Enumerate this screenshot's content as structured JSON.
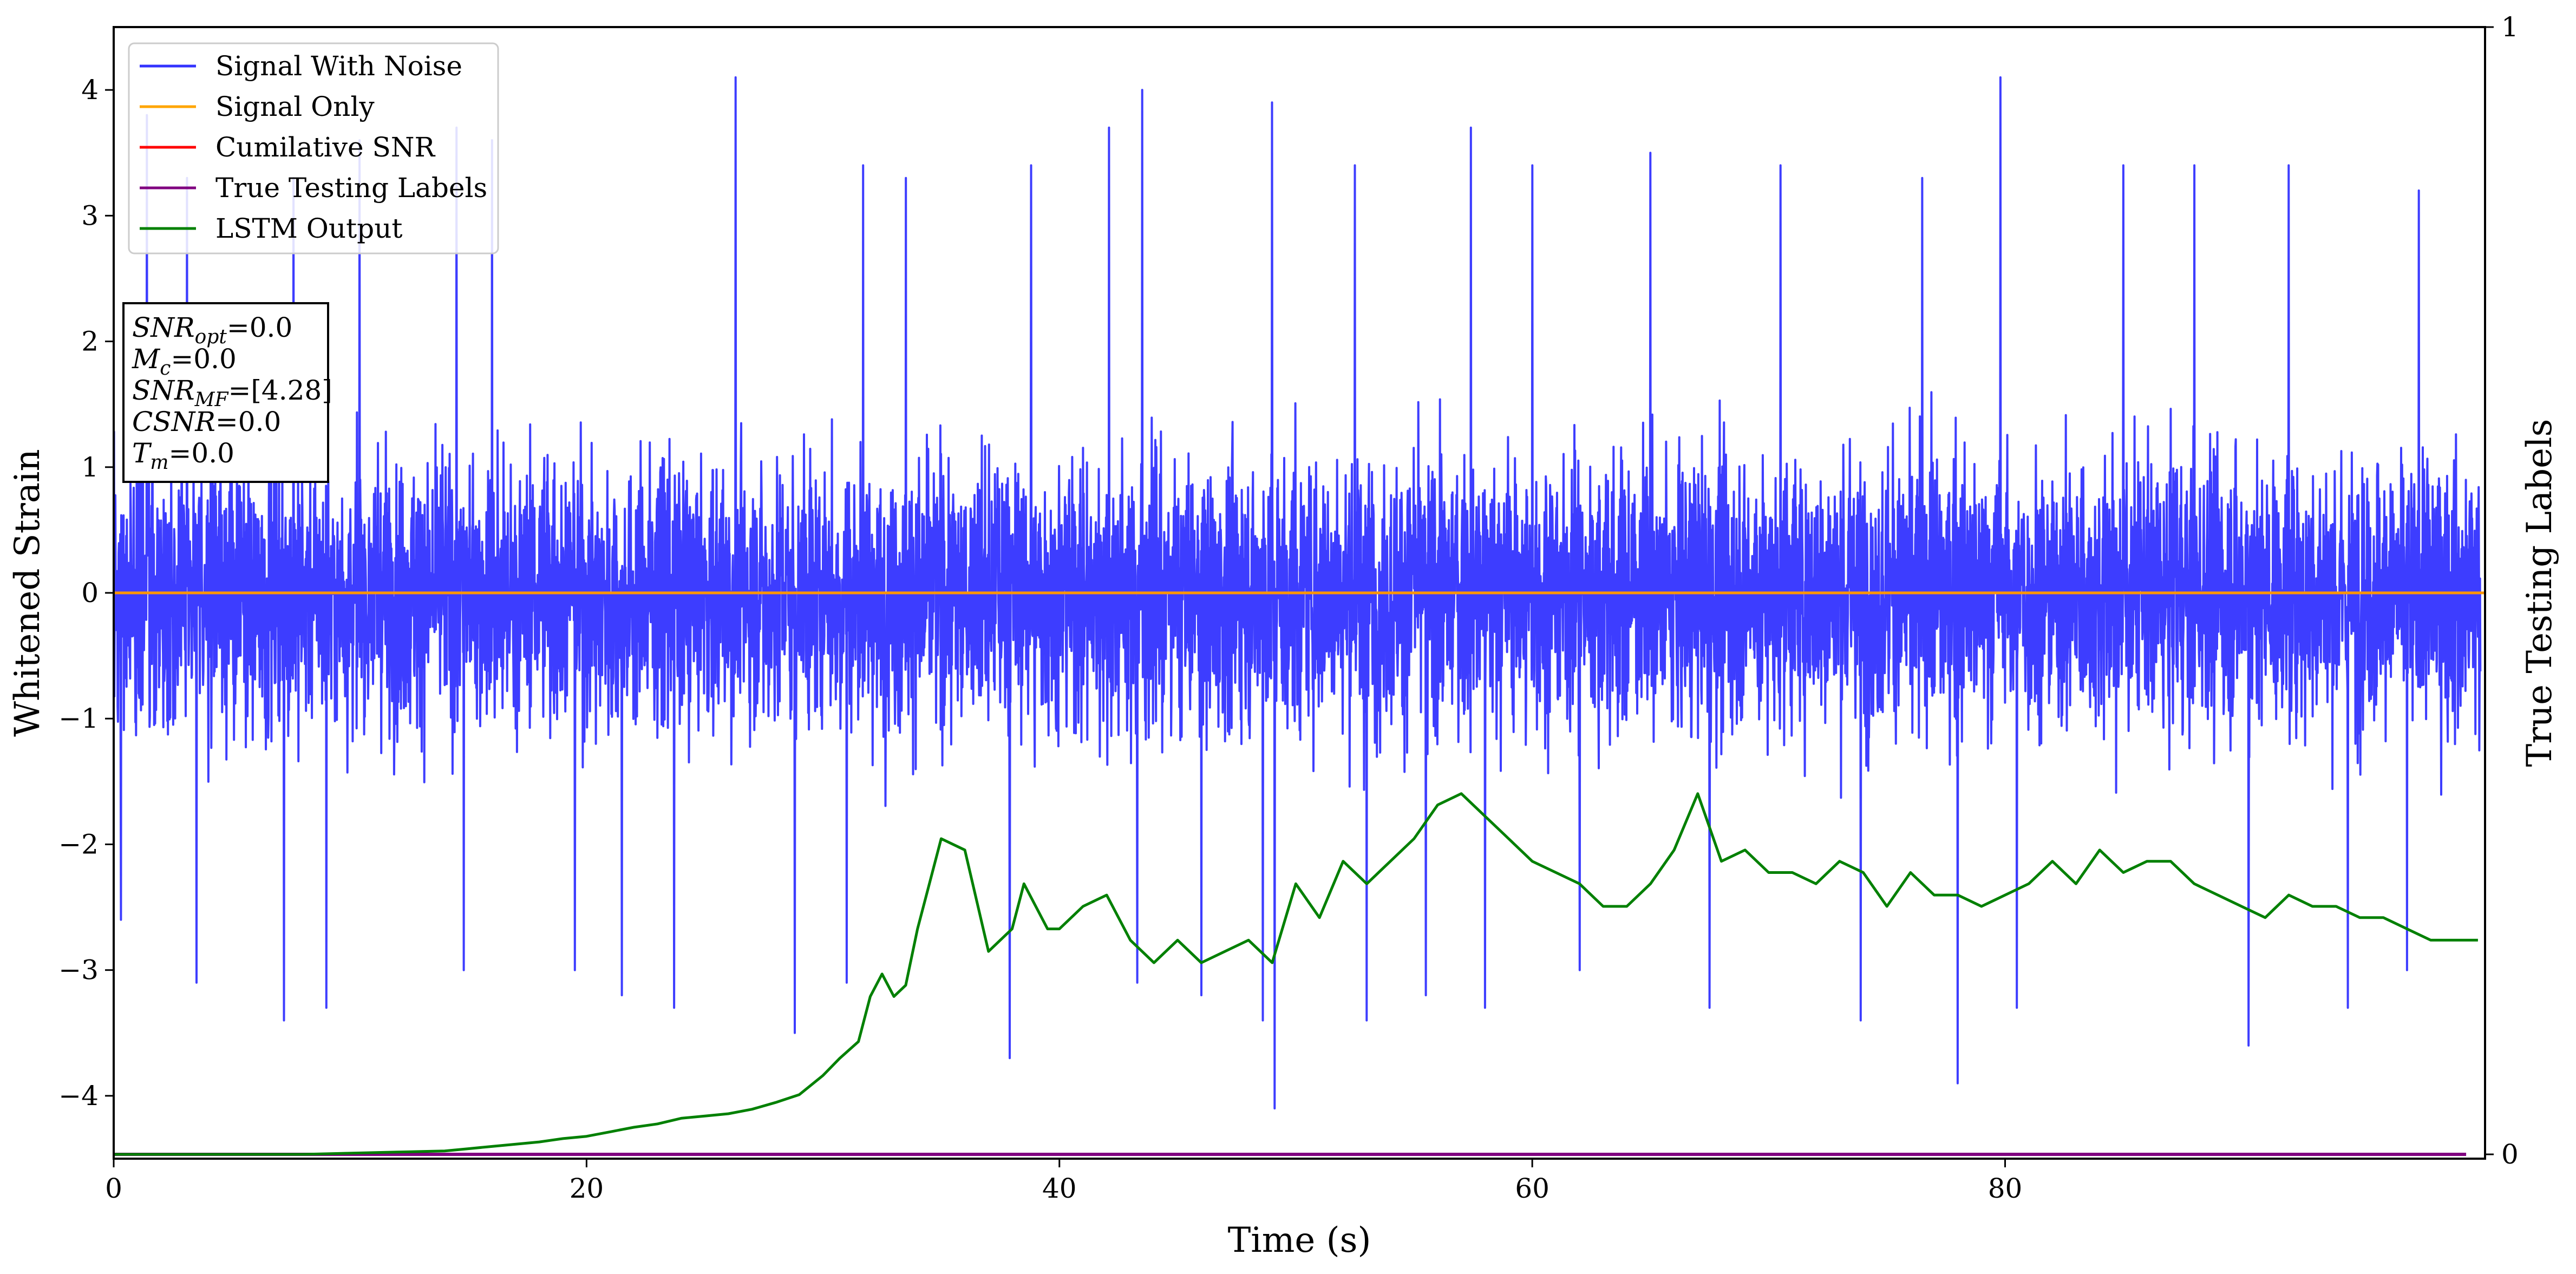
{
  "chart_data": {
    "type": "line",
    "title": "",
    "xlabel": "Time (s)",
    "ylabel": "Whitened Strain",
    "ylabel_right": "True Testing Labels",
    "xlim": [
      0,
      100.3
    ],
    "ylim": [
      -4.5,
      4.5
    ],
    "ylim_right": [
      0,
      1
    ],
    "x_ticks": [
      0,
      20,
      40,
      60,
      80
    ],
    "y_ticks": [
      -4,
      -3,
      -2,
      -1,
      0,
      1,
      2,
      3,
      4
    ],
    "y_ticks_right": [
      0,
      1
    ],
    "legend_position": "upper-left",
    "grid": false,
    "info_box": [
      {
        "sym": "SNR",
        "sub": "opt",
        "rest": "=0.0"
      },
      {
        "sym": "M",
        "sub": "c",
        "rest": "=0.0"
      },
      {
        "sym": "SNR",
        "sub": "MF",
        "rest": "=[4.28]"
      },
      {
        "sym": "CSNR",
        "sub": "",
        "rest": "=0.0"
      },
      {
        "sym": "T",
        "sub": "m",
        "rest": "=0.0"
      }
    ],
    "series": [
      {
        "name": "Signal With Noise",
        "color": "#3333ff",
        "axis": "left",
        "description_note": "dense noise trace sampled throughout 0–100 s",
        "envelope": {
          "typical_low": -1.6,
          "typical_high": 1.6
        },
        "peaks": [
          [
            1.4,
            3.8
          ],
          [
            3.1,
            3.3
          ],
          [
            7.6,
            3.3
          ],
          [
            10.4,
            3.6
          ],
          [
            14.5,
            3.7
          ],
          [
            16.0,
            3.6
          ],
          [
            26.3,
            4.1
          ],
          [
            31.7,
            3.4
          ],
          [
            33.5,
            3.3
          ],
          [
            38.8,
            3.4
          ],
          [
            42.1,
            3.7
          ],
          [
            43.5,
            4.0
          ],
          [
            49.0,
            3.9
          ],
          [
            52.5,
            3.4
          ],
          [
            57.4,
            3.7
          ],
          [
            60.0,
            3.4
          ],
          [
            65.0,
            3.5
          ],
          [
            70.5,
            3.4
          ],
          [
            76.5,
            3.3
          ],
          [
            79.8,
            4.1
          ],
          [
            85.0,
            3.4
          ],
          [
            88.0,
            3.4
          ],
          [
            92.0,
            3.4
          ],
          [
            97.5,
            3.2
          ]
        ],
        "troughs": [
          [
            0.3,
            -2.6
          ],
          [
            3.5,
            -3.1
          ],
          [
            7.2,
            -3.4
          ],
          [
            9.0,
            -3.3
          ],
          [
            14.8,
            -3.0
          ],
          [
            19.5,
            -3.0
          ],
          [
            21.5,
            -3.2
          ],
          [
            23.7,
            -3.3
          ],
          [
            28.8,
            -3.5
          ],
          [
            31.0,
            -3.1
          ],
          [
            37.9,
            -3.7
          ],
          [
            43.3,
            -3.1
          ],
          [
            46.0,
            -3.2
          ],
          [
            48.6,
            -3.4
          ],
          [
            49.1,
            -4.1
          ],
          [
            53.0,
            -3.4
          ],
          [
            55.5,
            -3.2
          ],
          [
            58.0,
            -3.3
          ],
          [
            62.0,
            -3.0
          ],
          [
            67.5,
            -3.3
          ],
          [
            73.9,
            -3.4
          ],
          [
            78.0,
            -3.9
          ],
          [
            80.5,
            -3.3
          ],
          [
            90.3,
            -3.6
          ],
          [
            94.5,
            -3.3
          ],
          [
            97.0,
            -3.0
          ]
        ]
      },
      {
        "name": "Signal Only",
        "color": "#ffa500",
        "axis": "left",
        "x": [
          0,
          100.3
        ],
        "y": [
          0,
          0
        ]
      },
      {
        "name": "Cumilative SNR",
        "color": "#ff0000",
        "axis": "left",
        "x": [
          0,
          100.3
        ],
        "y": [
          0,
          0
        ]
      },
      {
        "name": "True Testing Labels",
        "color": "#800080",
        "axis": "right",
        "x": [
          0,
          99.5
        ],
        "y": [
          0,
          0
        ]
      },
      {
        "name": "LSTM Output",
        "color": "#008000",
        "axis": "right",
        "x": [
          0,
          2,
          4,
          6,
          8,
          10,
          12,
          14,
          15,
          16,
          17,
          18,
          19,
          20,
          21,
          22,
          23,
          24,
          25,
          26,
          27,
          28,
          29,
          30,
          30.7,
          31.5,
          32,
          32.5,
          33,
          33.5,
          34,
          34.5,
          35,
          36,
          37,
          38,
          38.5,
          39.5,
          40,
          41,
          42,
          43,
          44,
          45,
          46,
          47,
          48,
          49,
          50,
          51,
          52,
          53,
          54,
          55,
          56,
          57,
          58,
          59,
          60,
          61,
          62,
          63,
          64,
          65,
          66,
          67,
          68,
          69,
          70,
          71,
          72,
          73,
          74,
          75,
          76,
          77,
          78,
          79,
          80,
          81,
          82,
          83,
          84,
          85,
          86,
          87,
          88,
          89,
          90,
          91,
          92,
          93,
          94,
          95,
          96,
          97,
          98,
          99,
          100
        ],
        "y": [
          0.0,
          0.0,
          0.0,
          0.0,
          0.0,
          0.001,
          0.002,
          0.003,
          0.005,
          0.007,
          0.009,
          0.011,
          0.014,
          0.016,
          0.02,
          0.024,
          0.027,
          0.032,
          0.034,
          0.036,
          0.04,
          0.046,
          0.053,
          0.07,
          0.085,
          0.1,
          0.14,
          0.16,
          0.14,
          0.15,
          0.2,
          0.24,
          0.28,
          0.27,
          0.18,
          0.2,
          0.24,
          0.2,
          0.2,
          0.22,
          0.23,
          0.19,
          0.17,
          0.19,
          0.17,
          0.18,
          0.19,
          0.17,
          0.24,
          0.21,
          0.26,
          0.24,
          0.26,
          0.28,
          0.31,
          0.32,
          0.3,
          0.28,
          0.26,
          0.25,
          0.24,
          0.22,
          0.22,
          0.24,
          0.27,
          0.32,
          0.26,
          0.27,
          0.25,
          0.25,
          0.24,
          0.26,
          0.25,
          0.22,
          0.25,
          0.23,
          0.23,
          0.22,
          0.23,
          0.24,
          0.26,
          0.24,
          0.27,
          0.25,
          0.26,
          0.26,
          0.24,
          0.23,
          0.22,
          0.21,
          0.23,
          0.22,
          0.22,
          0.21,
          0.21,
          0.2,
          0.19,
          0.19,
          0.19
        ]
      }
    ]
  }
}
